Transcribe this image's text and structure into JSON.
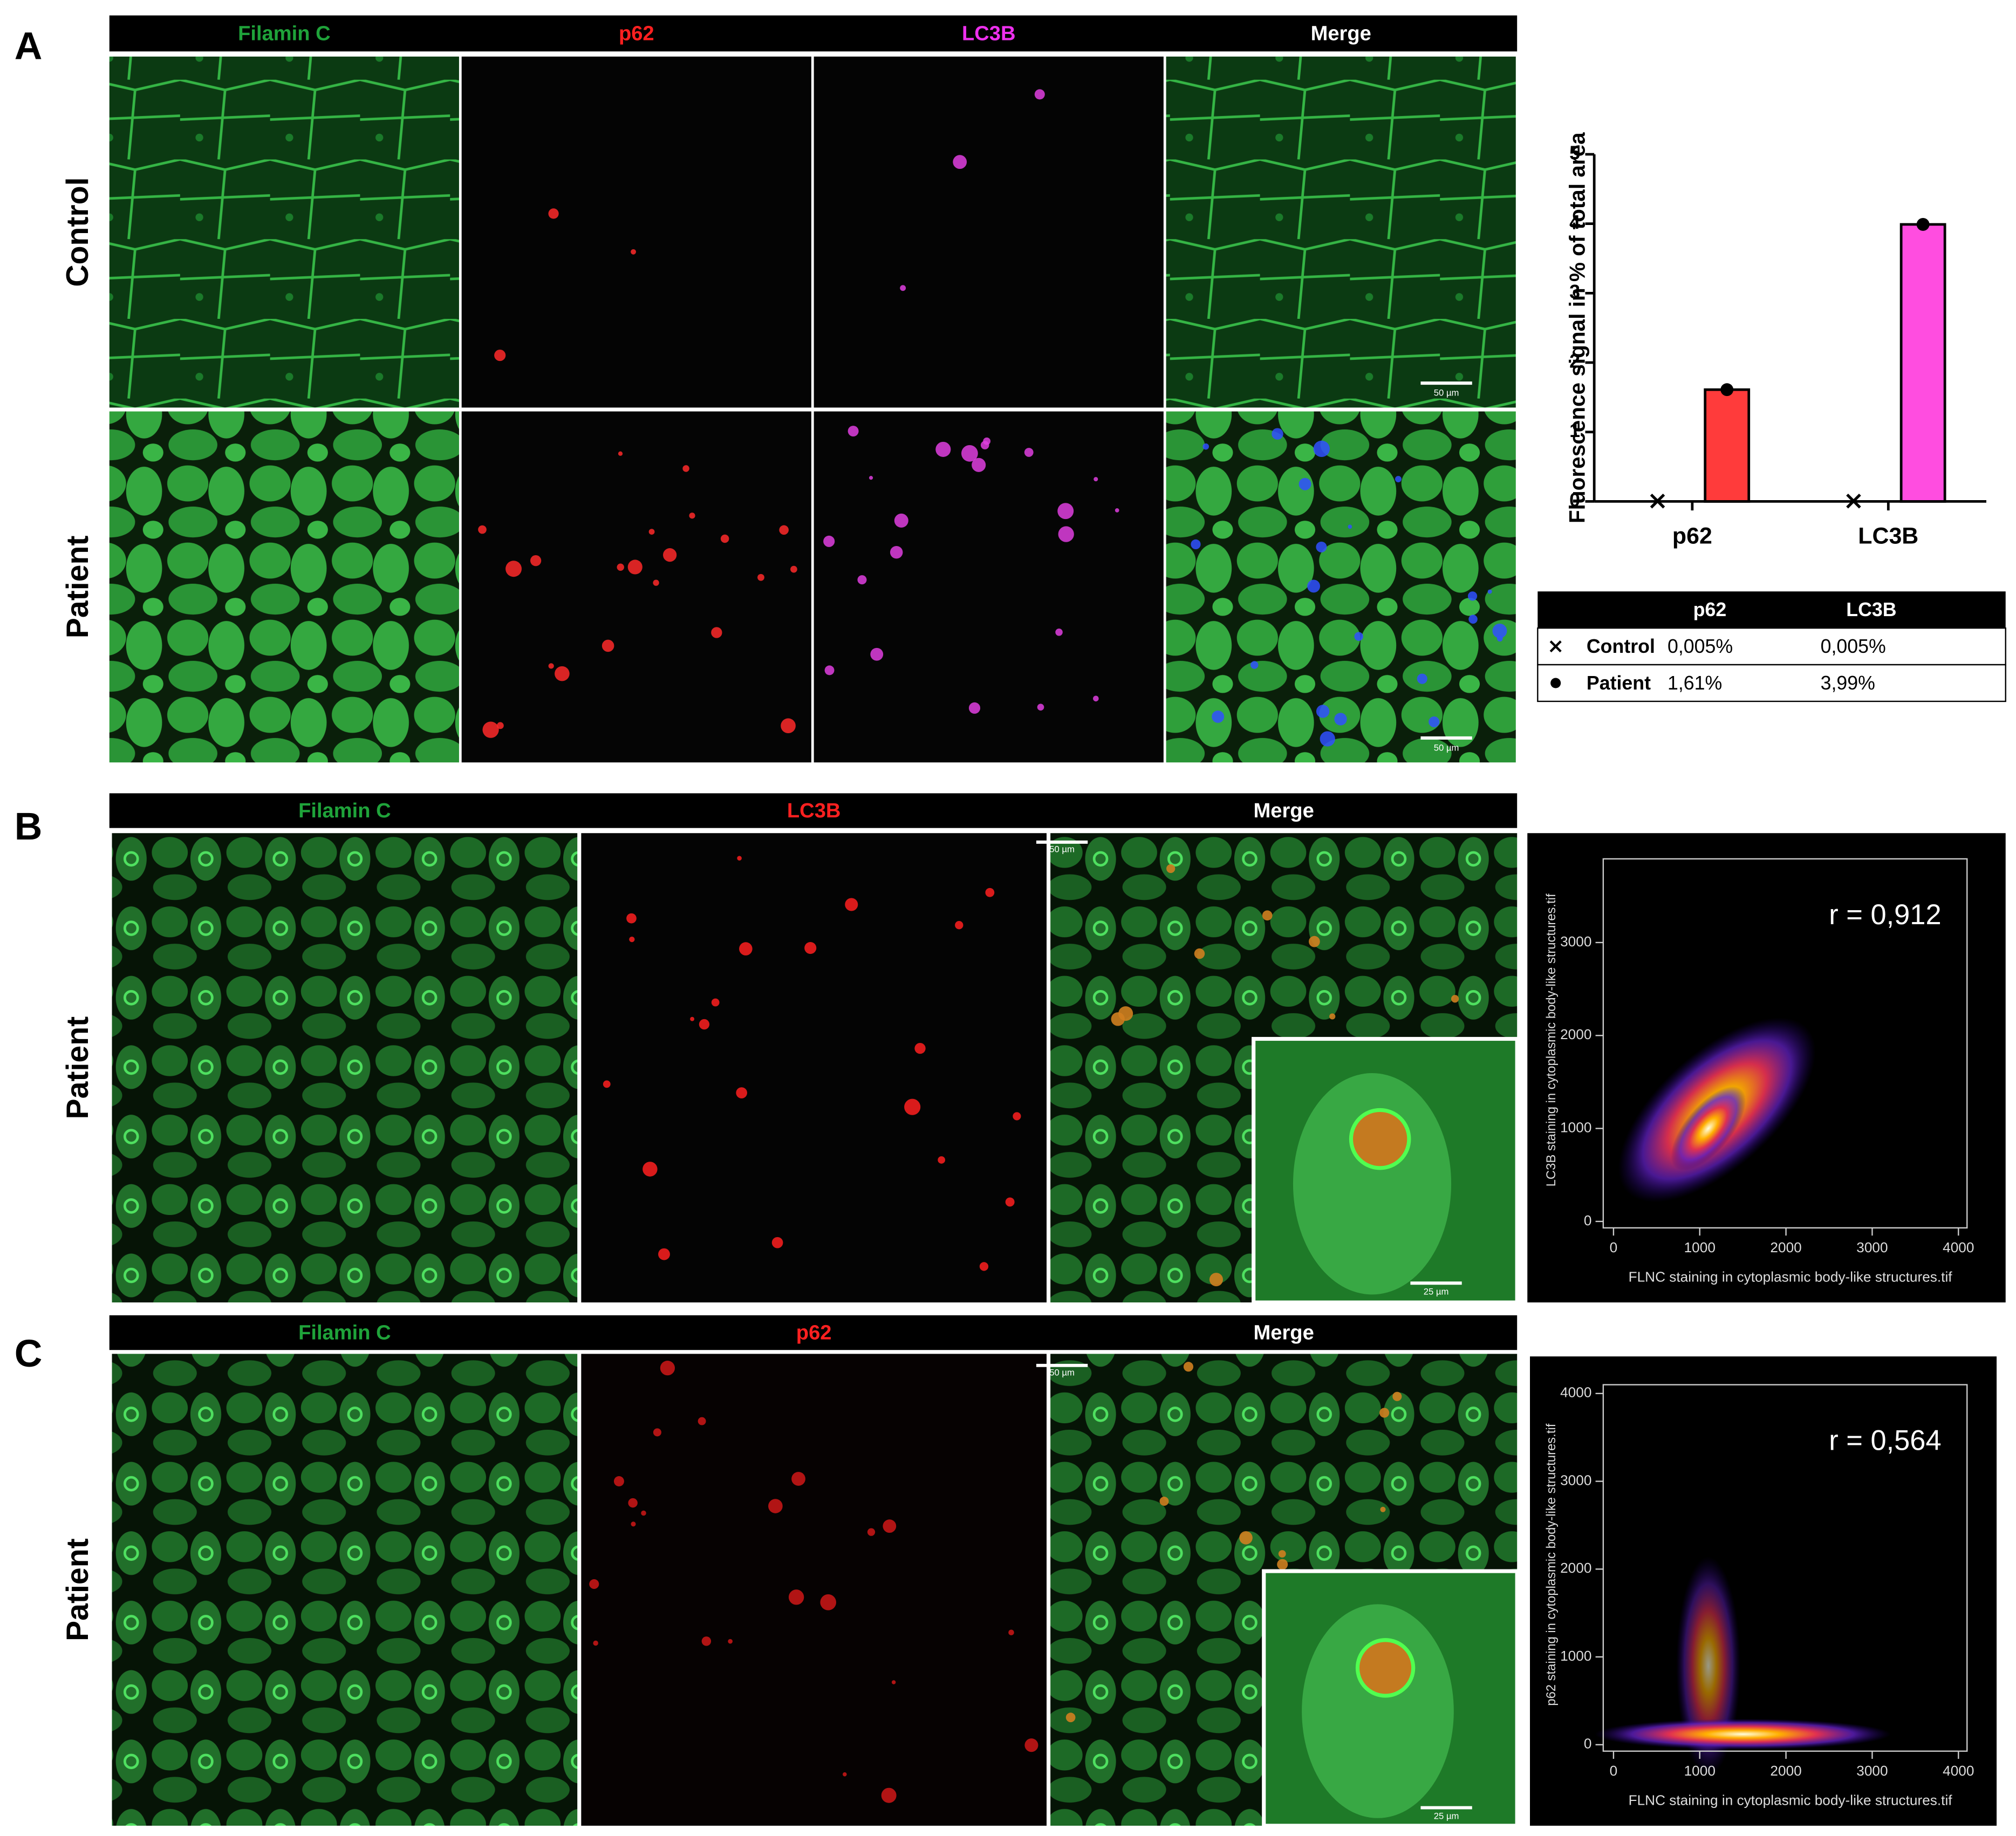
{
  "panels": [
    {
      "label": "A",
      "headers": [
        "Filamin C",
        "p62",
        "LC3B",
        "Merge"
      ],
      "header_colors": [
        "#1fa33a",
        "#ff2020",
        "#ee30ee",
        "#ffffff"
      ],
      "rows": [
        "Control",
        "Patient"
      ],
      "scale_bars": [
        "50 µm",
        "50 µm"
      ]
    },
    {
      "label": "B",
      "headers": [
        "Filamin C",
        "LC3B",
        "Merge"
      ],
      "header_colors": [
        "#1fa33a",
        "#ff2020",
        "#ffffff"
      ],
      "rows": [
        "Patient"
      ],
      "scale_bars": [
        "50 µm",
        "25 µm"
      ]
    },
    {
      "label": "C",
      "headers": [
        "Filamin C",
        "p62",
        "Merge"
      ],
      "header_colors": [
        "#1fa33a",
        "#ff2020",
        "#ffffff"
      ],
      "rows": [
        "Patient"
      ],
      "scale_bars": [
        "50 µm",
        "25 µm"
      ]
    }
  ],
  "chart_data": [
    {
      "type": "bar",
      "ylabel": "Fluorescence signal in % of total area",
      "categories": [
        "p62",
        "LC3B"
      ],
      "series": [
        {
          "name": "Control",
          "marker": "x",
          "values": [
            0.005,
            0.005
          ],
          "value_labels": [
            "0,005%",
            "0,005%"
          ]
        },
        {
          "name": "Patient",
          "marker": "bar",
          "colors": [
            "#ff3b3b",
            "#ff4de0"
          ],
          "values": [
            1.61,
            3.99
          ],
          "value_labels": [
            "1,61%",
            "3,99%"
          ]
        }
      ],
      "ylim": [
        0,
        5
      ],
      "yticks": [
        0,
        1,
        2,
        3,
        4,
        5
      ]
    },
    {
      "type": "density",
      "xlabel": "FLNC staining in cytoplasmic body-like structures.tif",
      "ylabel": "LC3B staining in cytoplasmic body-like structures.tif",
      "annotation": "r = 0,912",
      "xlim": [
        0,
        4100
      ],
      "ylim": [
        0,
        3900
      ],
      "xticks": [
        0,
        1000,
        2000,
        3000,
        4000
      ],
      "yticks": [
        0,
        1000,
        2000,
        3000
      ]
    },
    {
      "type": "density",
      "xlabel": "FLNC staining in cytoplasmic body-like structures.tif",
      "ylabel": "p62 staining in cytoplasmic body-like structures.tif",
      "annotation": "r = 0,564",
      "xlim": [
        0,
        4100
      ],
      "ylim": [
        0,
        4100
      ],
      "xticks": [
        0,
        1000,
        2000,
        3000,
        4000
      ],
      "yticks": [
        0,
        1000,
        2000,
        3000,
        4000
      ]
    }
  ]
}
